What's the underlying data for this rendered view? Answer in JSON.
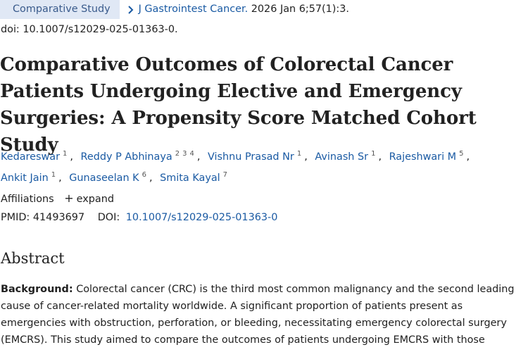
{
  "header": {
    "article_type": "Comparative Study",
    "journal": "J Gastrointest Cancer.",
    "citation": "2026 Jan 6;57(1):3.",
    "doi_line": "doi: 10.1007/s12029-025-01363-0."
  },
  "title": "Comparative Outcomes of Colorectal Cancer Patients Undergoing Elective and Emergency Surgeries: A Propensity Score Matched Cohort Study",
  "authors": [
    {
      "name": "Kedareswar",
      "affils": [
        "1"
      ]
    },
    {
      "name": "Reddy P Abhinaya",
      "affils": [
        "2",
        "3",
        "4"
      ]
    },
    {
      "name": "Vishnu Prasad Nr",
      "affils": [
        "1"
      ]
    },
    {
      "name": "Avinash Sr",
      "affils": [
        "1"
      ]
    },
    {
      "name": "Rajeshwari M",
      "affils": [
        "5"
      ]
    },
    {
      "name": "Ankit Jain",
      "affils": [
        "1"
      ]
    },
    {
      "name": "Gunaseelan K",
      "affils": [
        "6"
      ]
    },
    {
      "name": "Smita Kayal",
      "affils": [
        "7"
      ]
    }
  ],
  "affiliations": {
    "label": "Affiliations",
    "expand_label": "expand"
  },
  "identifiers": {
    "pmid_label": "PMID:",
    "pmid": "41493697",
    "doi_label": "DOI:",
    "doi": "10.1007/s12029-025-01363-0"
  },
  "abstract": {
    "heading": "Abstract",
    "background_label": "Background:",
    "background_text": "Colorectal cancer (CRC) is the third most common malignancy and the second leading cause of cancer-related mortality worldwide. A significant proportion of patients present as emergencies with obstruction, perforation, or bleeding, necessitating emergency colorectal surgery (EMCRS). This study aimed to compare the outcomes of patients undergoing EMCRS with those"
  },
  "colors": {
    "link": "#1a5aa3",
    "badge_bg": "#e0e8f5",
    "badge_text": "#3a5b8c",
    "text": "#212121"
  },
  "icons": {
    "journal_chevron": "chevron-right-icon",
    "expand": "plus-icon"
  }
}
